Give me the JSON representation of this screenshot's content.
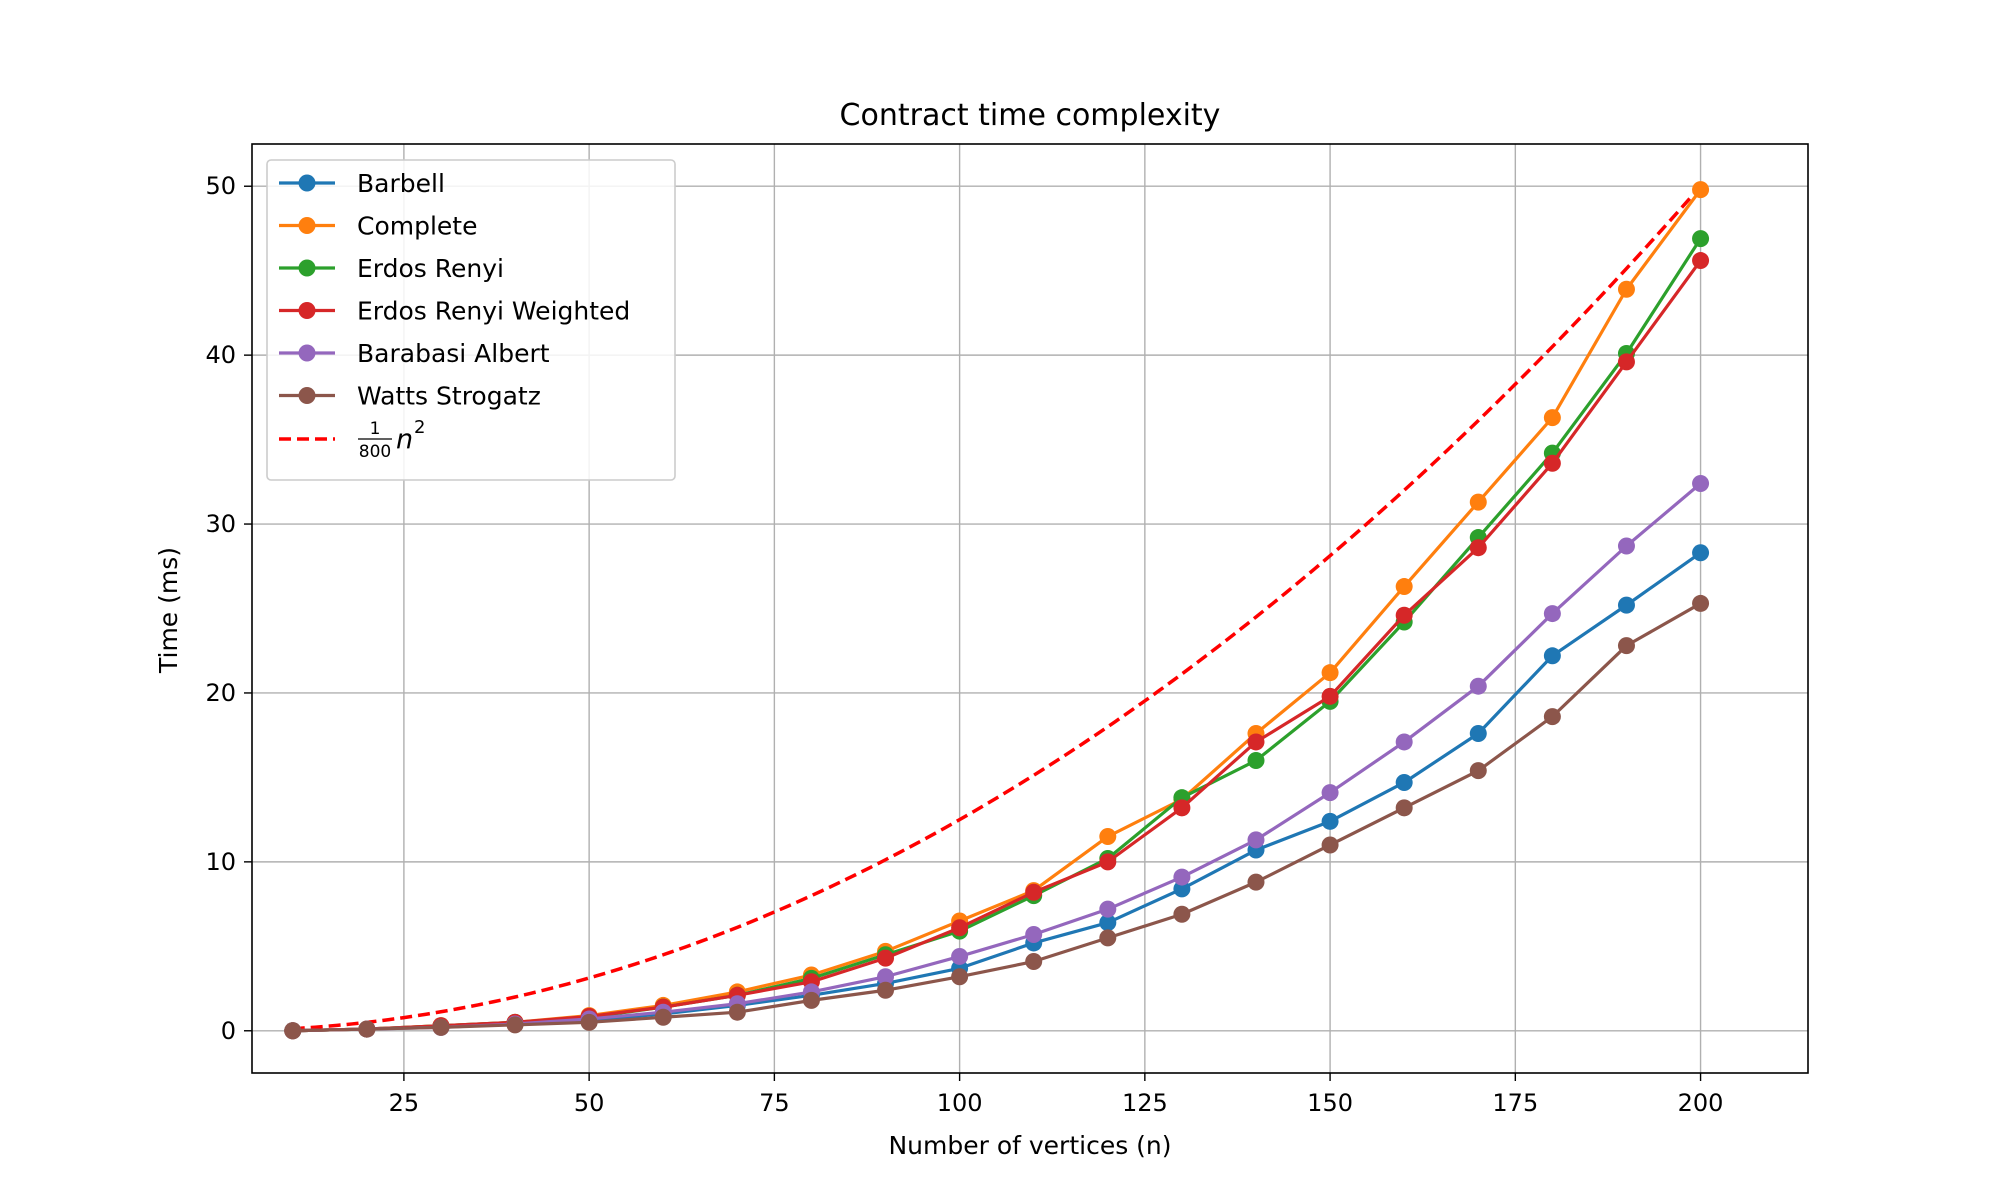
{
  "chart_data": {
    "type": "line",
    "title": "Contract time complexity",
    "xlabel": "Number of vertices (n)",
    "ylabel": "Time (ms)",
    "xlim": [
      4.5,
      214.5
    ],
    "ylim": [
      -2.5,
      52.5
    ],
    "x_ticks": [
      25,
      50,
      75,
      100,
      125,
      150,
      175,
      200
    ],
    "y_ticks": [
      0,
      10,
      20,
      30,
      40,
      50
    ],
    "grid": true,
    "legend_position": "upper left",
    "x": [
      10,
      20,
      30,
      40,
      50,
      60,
      70,
      80,
      90,
      100,
      110,
      120,
      130,
      140,
      150,
      160,
      170,
      180,
      190,
      200
    ],
    "series": [
      {
        "name": "Barbell",
        "color": "#1f77b4",
        "values": [
          0.0,
          0.1,
          0.25,
          0.4,
          0.6,
          1.0,
          1.5,
          2.1,
          2.8,
          3.7,
          5.2,
          6.4,
          8.4,
          10.7,
          12.4,
          14.7,
          17.6,
          22.2,
          25.2,
          28.3
        ]
      },
      {
        "name": "Complete",
        "color": "#ff7f0e",
        "values": [
          0.0,
          0.1,
          0.3,
          0.5,
          0.9,
          1.5,
          2.3,
          3.3,
          4.7,
          6.5,
          8.3,
          11.5,
          13.7,
          17.6,
          21.2,
          26.3,
          31.3,
          36.3,
          43.9,
          49.8
        ]
      },
      {
        "name": "Erdos Renyi",
        "color": "#2ca02c",
        "values": [
          0.0,
          0.1,
          0.3,
          0.5,
          0.8,
          1.4,
          2.1,
          3.1,
          4.5,
          5.9,
          8.0,
          10.2,
          13.8,
          16.0,
          19.5,
          24.2,
          29.2,
          34.2,
          40.1,
          46.9
        ]
      },
      {
        "name": "Erdos Renyi Weighted",
        "color": "#d62728",
        "values": [
          0.0,
          0.1,
          0.3,
          0.5,
          0.85,
          1.4,
          2.1,
          2.9,
          4.3,
          6.1,
          8.2,
          10.0,
          13.2,
          17.1,
          19.8,
          24.6,
          28.6,
          33.6,
          39.6,
          45.6
        ]
      },
      {
        "name": "Barabasi Albert",
        "color": "#9467bd",
        "values": [
          0.0,
          0.1,
          0.2,
          0.4,
          0.7,
          1.1,
          1.6,
          2.3,
          3.2,
          4.4,
          5.7,
          7.2,
          9.1,
          11.3,
          14.1,
          17.1,
          20.4,
          24.7,
          28.7,
          32.4
        ]
      },
      {
        "name": "Watts Strogatz",
        "color": "#8c564b",
        "values": [
          0.0,
          0.1,
          0.2,
          0.35,
          0.5,
          0.8,
          1.1,
          1.8,
          2.4,
          3.2,
          4.1,
          5.5,
          6.9,
          8.8,
          11.0,
          13.2,
          15.4,
          18.6,
          22.8,
          25.3
        ]
      }
    ],
    "reference_curve": {
      "legend_label": "n²/800",
      "legend_fraction_num": "1",
      "legend_fraction_den": "800",
      "legend_symbol": "n",
      "legend_exponent": "2",
      "formula": "n^2/800",
      "coefficient": 0.00125,
      "x_range": [
        10,
        200
      ],
      "color": "#ff0000",
      "dashed": true
    }
  }
}
